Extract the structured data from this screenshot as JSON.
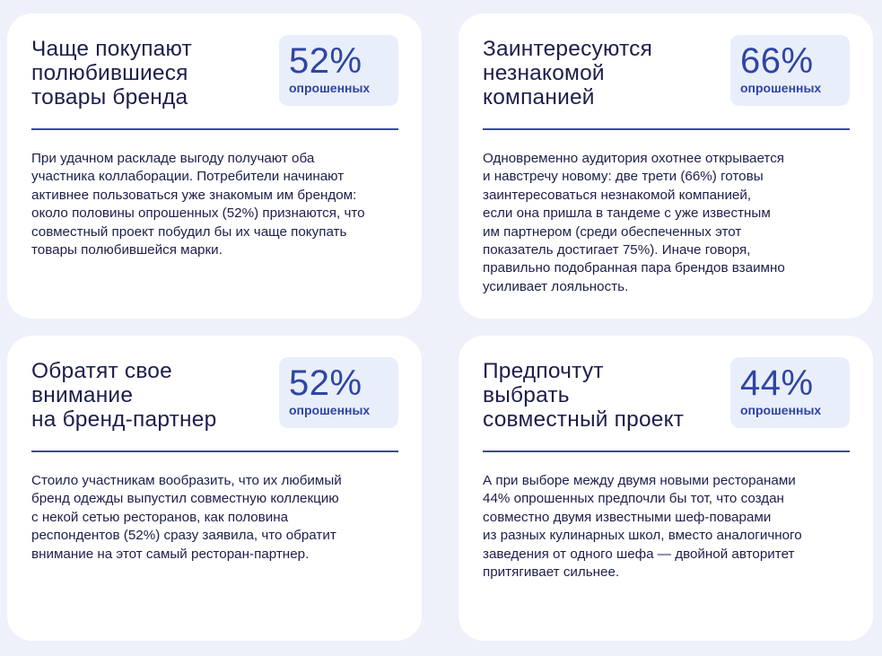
{
  "cards": [
    {
      "title": "Чаще покупают\nполюбившиеся\nтовары бренда",
      "value": "52%",
      "caption": "опрошенных",
      "body": "При удачном раскладе выгоду получают оба\nучастника коллаборации. Потребители начинают\nактивнее пользоваться уже знакомым им брендом:\nоколо половины опрошенных (52%) признаются, что\nсовместный проект побудил бы их чаще покупать\nтовары полюбившейся марки."
    },
    {
      "title": "Заинтересуются\nнезнакомой\nкомпанией",
      "value": "66%",
      "caption": "опрошенных",
      "body": "Одновременно аудитория охотнее открывается\nи навстречу новому: две трети (66%) готовы\nзаинтересоваться незнакомой компанией,\nесли она пришла в тандеме с уже известным\nим партнером (среди обеспеченных этот\nпоказатель достигает 75%). Иначе говоря,\nправильно подобранная пара брендов взаимно\nусиливает лояльность."
    },
    {
      "title": "Обратят свое\nвнимание\nна бренд-партнер",
      "value": "52%",
      "caption": "опрошенных",
      "body": "Стоило участникам вообразить, что их любимый\nбренд одежды выпустил совместную коллекцию\nс некой сетью ресторанов, как половина\nреспондентов (52%) сразу заявила, что обратит\nвнимание на этот самый ресторан-партнер."
    },
    {
      "title": "Предпочтут\nвыбрать\nсовместный проект",
      "value": "44%",
      "caption": "опрошенных",
      "body": "А при выборе между двумя новыми ресторанами\n44% опрошенных предпочли бы тот, что создан\nсовместно двумя известными шеф-поварами\nиз разных кулинарных школ, вместо аналогичного\nзаведения от одного шефа — двойной авторитет\nпритягивает сильнее."
    }
  ]
}
